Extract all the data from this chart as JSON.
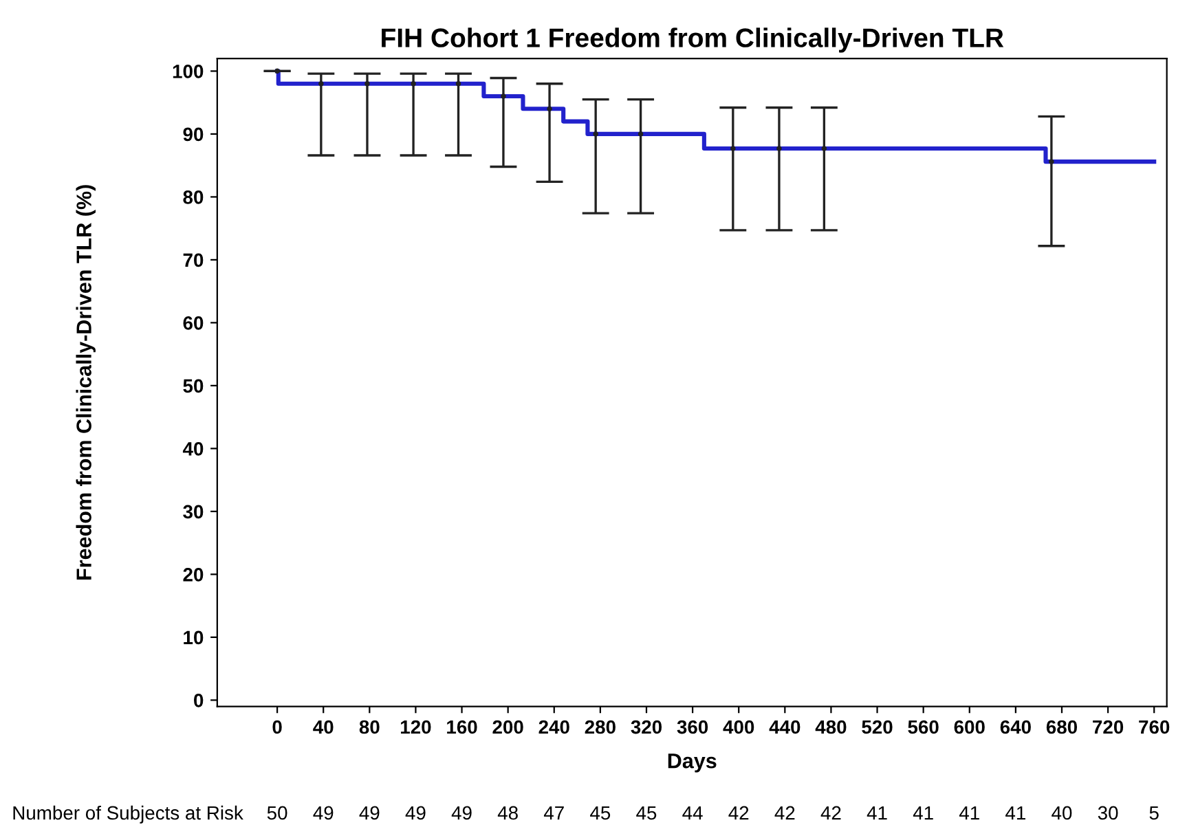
{
  "chart_data": {
    "type": "step",
    "title": "FIH Cohort 1 Freedom from Clinically-Driven TLR",
    "xlabel": "Days",
    "ylabel": "Freedom from Clinically-Driven TLR (%)",
    "series": [
      {
        "color": "#2222cc",
        "x": [
          0,
          1,
          179,
          213,
          248,
          269,
          370,
          666,
          760
        ],
        "values": [
          100,
          98,
          96,
          94,
          92,
          90,
          87.7,
          85.6,
          85.6
        ]
      },
      {
        "type": "scatter",
        "color": "#222222",
        "x": [
          0,
          38,
          78,
          118,
          157,
          196,
          236,
          276,
          315,
          395,
          435,
          474,
          671
        ],
        "values": [
          100,
          98,
          98,
          98,
          98,
          96,
          94,
          90,
          90,
          87.7,
          87.7,
          87.7,
          85.6
        ],
        "errors": [
          [
            100,
            100
          ],
          [
            86.6,
            99.6
          ],
          [
            86.6,
            99.6
          ],
          [
            86.6,
            99.6
          ],
          [
            86.6,
            99.6
          ],
          [
            84.8,
            98.9
          ],
          [
            82.4,
            98
          ],
          [
            77.4,
            95.5
          ],
          [
            77.4,
            95.5
          ],
          [
            74.7,
            94.2
          ],
          [
            74.7,
            94.2
          ],
          [
            74.7,
            94.2
          ],
          [
            72.2,
            92.8
          ]
        ]
      }
    ],
    "marker": "none",
    "xlim": [
      -52,
      771
    ],
    "ylim": [
      -1,
      102
    ],
    "xticks": [
      0,
      40,
      80,
      120,
      160,
      200,
      240,
      280,
      320,
      360,
      400,
      440,
      480,
      520,
      560,
      600,
      640,
      680,
      720,
      760
    ],
    "yticks": [
      0,
      10,
      20,
      30,
      40,
      50,
      60,
      70,
      80,
      90,
      100
    ],
    "grid": false,
    "legend": false,
    "annotations": [
      "Number of Subjects at Risk",
      "50",
      "49",
      "49",
      "49",
      "49",
      "48",
      "47",
      "45",
      "45",
      "44",
      "42",
      "42",
      "42",
      "41",
      "41",
      "41",
      "41",
      "40",
      "30",
      "5"
    ]
  }
}
